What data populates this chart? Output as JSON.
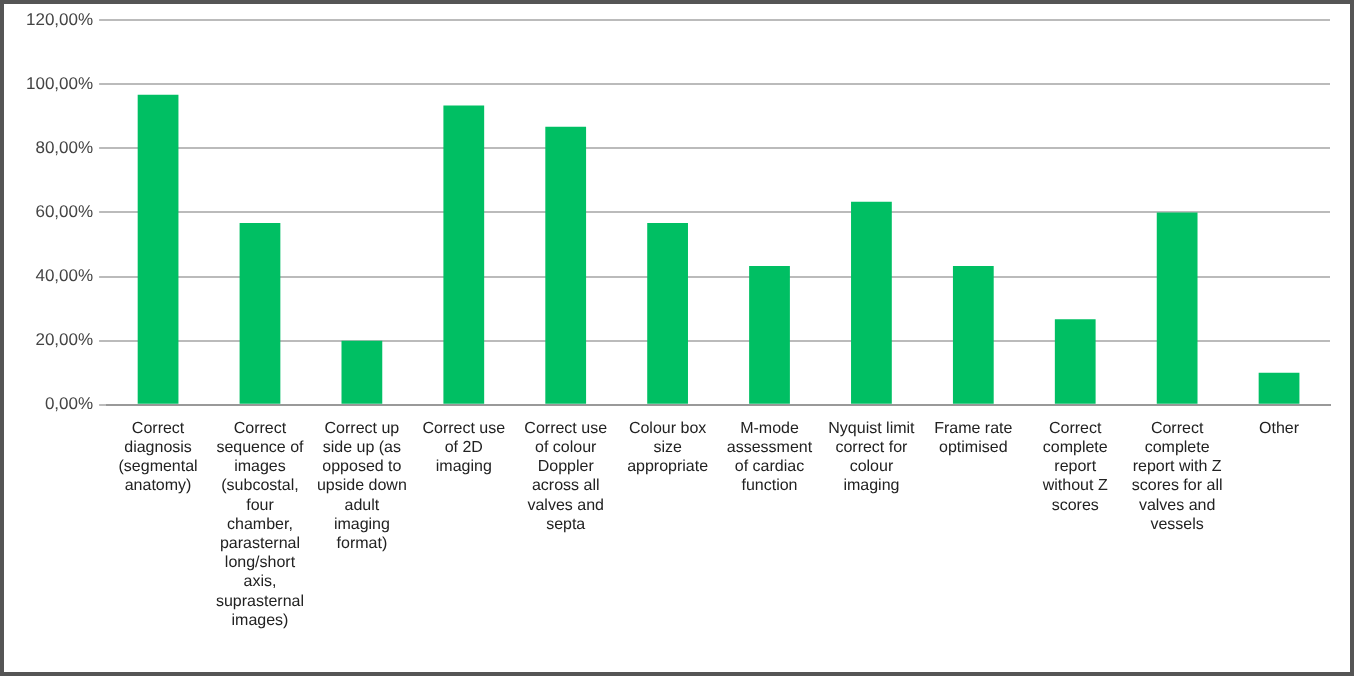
{
  "chart_data": {
    "type": "bar",
    "categories": [
      "Correct diagnosis (segmental anatomy)",
      "Correct sequence of images (subcostal, four chamber, parasternal long/short axis, suprasternal images)",
      "Correct up side up (as opposed to upside down adult imaging format)",
      "Correct use of 2D imaging",
      "Correct use of colour Doppler across all valves and septa",
      "Colour box size appropriate",
      "M-mode assessment of cardiac function",
      "Nyquist limit correct for colour imaging",
      "Frame rate optimised",
      "Correct complete report without Z scores",
      "Correct complete report with Z scores for all valves and vessels",
      "Other"
    ],
    "values": [
      96.7,
      56.7,
      20,
      93.3,
      86.7,
      56.7,
      43.3,
      63.3,
      43.3,
      26.7,
      60,
      10
    ],
    "color": "#00bf63",
    "ylim": [
      0,
      120
    ],
    "yticks": [
      {
        "value": 0,
        "label": "0,00%"
      },
      {
        "value": 20,
        "label": "20,00%"
      },
      {
        "value": 40,
        "label": "40,00%"
      },
      {
        "value": 60,
        "label": "60,00%"
      },
      {
        "value": 80,
        "label": "80,00%"
      },
      {
        "value": 100,
        "label": "100,00%"
      },
      {
        "value": 120,
        "label": "120,00%"
      }
    ],
    "grid": "y",
    "legend": false
  }
}
